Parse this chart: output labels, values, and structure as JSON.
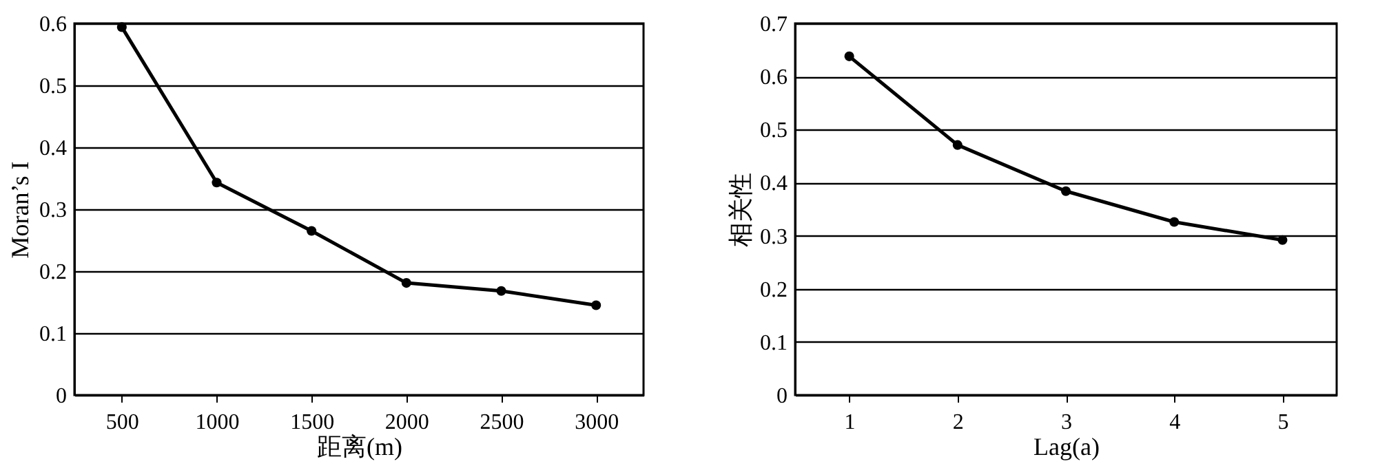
{
  "chart_data": [
    {
      "type": "line",
      "xlabel": "距离(m)",
      "ylabel": "Moran’s I",
      "x": [
        500,
        1000,
        1500,
        2000,
        2500,
        3000
      ],
      "xlim": [
        250,
        3250
      ],
      "xticks": [
        500,
        1000,
        1500,
        2000,
        2500,
        3000
      ],
      "ylim": [
        0,
        0.6
      ],
      "yticks": [
        0,
        0.1,
        0.2,
        0.3,
        0.4,
        0.5,
        0.6
      ],
      "grid": "y",
      "marker": "circle",
      "line_style": "solid",
      "series": [
        {
          "color": "#000000",
          "values": [
            0.594,
            0.343,
            0.265,
            0.181,
            0.168,
            0.145
          ]
        }
      ]
    },
    {
      "type": "line",
      "xlabel": "Lag(a)",
      "ylabel": "相关性",
      "x": [
        1,
        2,
        3,
        4,
        5
      ],
      "xlim": [
        0.5,
        5.5
      ],
      "xticks": [
        1,
        2,
        3,
        4,
        5
      ],
      "ylim": [
        0,
        0.7
      ],
      "yticks": [
        0,
        0.1,
        0.2,
        0.3,
        0.4,
        0.5,
        0.6,
        0.7
      ],
      "grid": "y",
      "marker": "circle",
      "line_style": "solid",
      "series": [
        {
          "color": "#000000",
          "values": [
            0.638,
            0.471,
            0.384,
            0.326,
            0.292
          ]
        }
      ]
    }
  ]
}
